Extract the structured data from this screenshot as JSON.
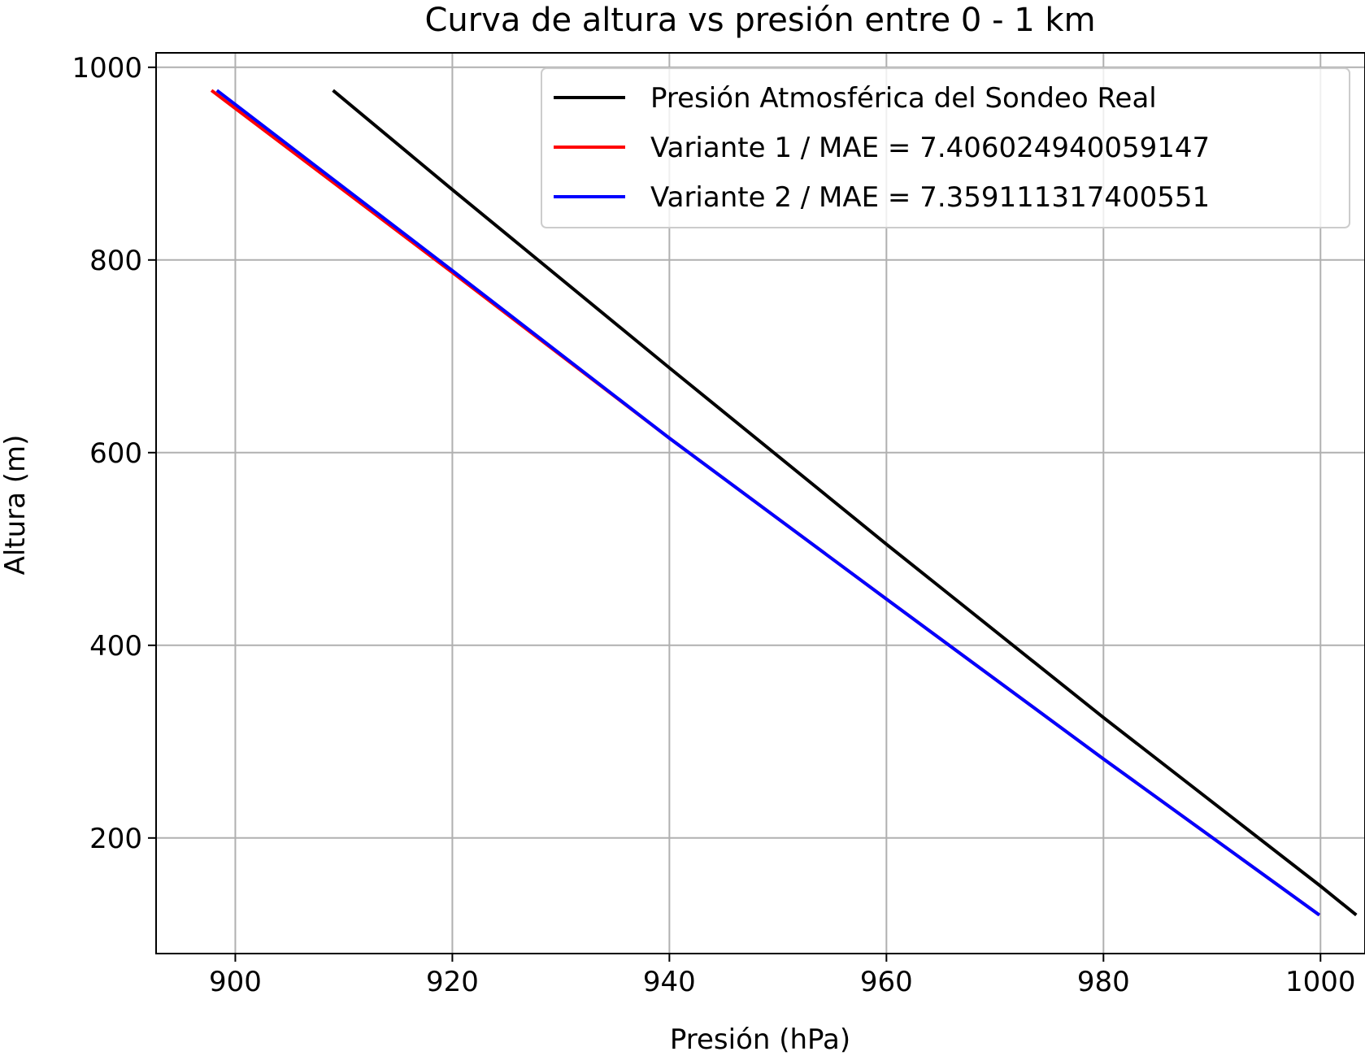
{
  "chart_data": {
    "type": "line",
    "title": "Curva de altura vs presión entre 0 - 1 km",
    "xlabel": "Presión (hPa)",
    "ylabel": "Altura (m)",
    "xlim": [
      892.7,
      1004.1
    ],
    "ylim": [
      80,
      1015
    ],
    "xticks": [
      900,
      920,
      940,
      960,
      980,
      1000
    ],
    "yticks": [
      200,
      400,
      600,
      800,
      1000
    ],
    "xtick_labels": [
      "900",
      "920",
      "940",
      "960",
      "980",
      "1000"
    ],
    "ytick_labels": [
      "200",
      "400",
      "600",
      "800",
      "1000"
    ],
    "grid": true,
    "legend_position": "top-right",
    "series": [
      {
        "name": "Presión Atmosférica del Sondeo Real",
        "color": "#000000",
        "x": [
          909.0,
          920.0,
          940.0,
          960.0,
          980.0,
          1000.0,
          1003.3
        ],
        "y": [
          976,
          873,
          688,
          505,
          325,
          150,
          120
        ]
      },
      {
        "name": "Variante 1 / MAE = 7.406024940059147",
        "color": "#ff0000",
        "x": [
          897.8,
          920.0,
          940.0,
          960.0,
          980.0,
          999.9
        ],
        "y": [
          976,
          787,
          615,
          448,
          282,
          120
        ]
      },
      {
        "name": "Variante 2 / MAE = 7.359111317400551",
        "color": "#0000ff",
        "x": [
          898.3,
          920.0,
          940.0,
          960.0,
          980.0,
          999.9
        ],
        "y": [
          976,
          789,
          615,
          448,
          282,
          120
        ]
      }
    ]
  }
}
